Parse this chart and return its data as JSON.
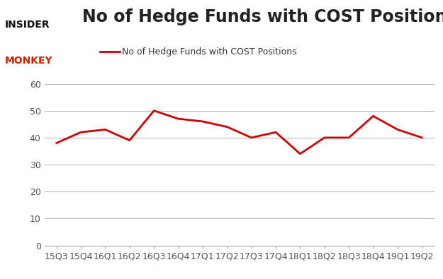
{
  "x_labels": [
    "15Q3",
    "15Q4",
    "16Q1",
    "16Q2",
    "16Q3",
    "16Q4",
    "17Q1",
    "17Q2",
    "17Q3",
    "17Q4",
    "18Q1",
    "18Q2",
    "18Q3",
    "18Q4",
    "19Q1",
    "19Q2"
  ],
  "y_values": [
    38,
    42,
    43,
    39,
    50,
    47,
    46,
    44,
    40,
    42,
    34,
    40,
    40,
    48,
    43,
    40
  ],
  "line_color": "#cc0000",
  "title": "No of Hedge Funds with COST Positions",
  "legend_label": "No of Hedge Funds with COST Positions",
  "ylim": [
    0,
    60
  ],
  "yticks": [
    0,
    10,
    20,
    30,
    40,
    50,
    60
  ],
  "bg_color": "#ffffff",
  "grid_color": "#bbbbbb",
  "title_fontsize": 17,
  "tick_fontsize": 9,
  "legend_fontsize": 9,
  "line_width": 2.0,
  "logo_insider_color": "#111111",
  "logo_monkey_color": "#cc2200"
}
